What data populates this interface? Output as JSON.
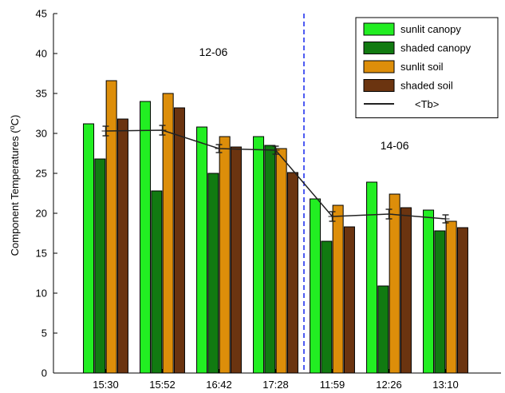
{
  "chart_data": {
    "type": "bar",
    "categories": [
      "15:30",
      "15:52",
      "16:42",
      "17:28",
      "11:59",
      "12:26",
      "13:10"
    ],
    "series": [
      {
        "name": "sunlit canopy",
        "color": "#22ee22",
        "values": [
          31.2,
          34.0,
          30.8,
          29.6,
          21.8,
          23.9,
          20.4
        ]
      },
      {
        "name": "shaded canopy",
        "color": "#117a11",
        "values": [
          26.8,
          22.8,
          25.0,
          28.5,
          16.5,
          10.9,
          17.8
        ]
      },
      {
        "name": "sunlit soil",
        "color": "#dd8e0a",
        "values": [
          36.6,
          35.0,
          29.6,
          28.1,
          21.0,
          22.4,
          19.0
        ]
      },
      {
        "name": "shaded soil",
        "color": "#6b3410",
        "values": [
          31.8,
          33.2,
          28.3,
          25.1,
          18.3,
          20.7,
          18.2
        ]
      }
    ],
    "line_series": {
      "name": "<Tb>",
      "color": "#222222",
      "values": [
        30.3,
        30.4,
        28.1,
        27.9,
        19.6,
        19.9,
        19.3
      ],
      "error": [
        0.6,
        0.6,
        0.5,
        0.5,
        0.6,
        0.6,
        0.5
      ]
    },
    "ylabel": "Component Temperatures (",
    "ylabel_sup": "o",
    "ylabel_end": "C)",
    "ylim": [
      0,
      45
    ],
    "yticks": [
      0,
      5,
      10,
      15,
      20,
      25,
      30,
      35,
      40,
      45
    ],
    "divider": {
      "after_index": 3,
      "color": "#2233ee"
    },
    "annotations": [
      {
        "text": "12-06",
        "x_category": 1.9,
        "y": 39.7
      },
      {
        "text": "14-06",
        "x_category": 5.1,
        "y": 28.0
      }
    ],
    "legend_position": "top-right",
    "grid": false
  }
}
